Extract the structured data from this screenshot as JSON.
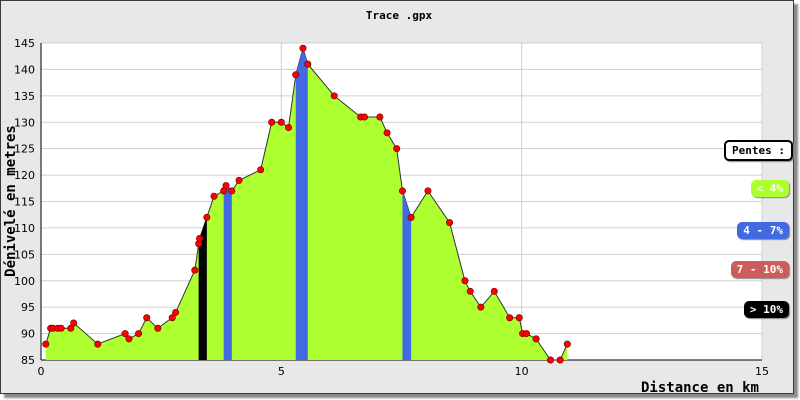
{
  "chart_data": {
    "type": "area",
    "title": "Trace .gpx",
    "xlabel": "Distance en km",
    "ylabel": "Dénivelé en metres",
    "xlim": [
      0,
      15
    ],
    "ylim": [
      85,
      145
    ],
    "x_ticks": [
      0,
      5,
      10,
      15
    ],
    "y_ticks": [
      85,
      90,
      95,
      100,
      105,
      110,
      115,
      120,
      125,
      130,
      135,
      140,
      145
    ],
    "grid": true,
    "legend_position": "right",
    "legend_title": "Pentes :",
    "legend": [
      {
        "label": "< 4%",
        "color": "#adff2f",
        "text_color": "#ffffff"
      },
      {
        "label": "4 - 7%",
        "color": "#4169e1",
        "text_color": "#ffffff"
      },
      {
        "label": "7 - 10%",
        "color": "#cd5c5c",
        "text_color": "#ffffff"
      },
      {
        "label": "> 10%",
        "color": "#000000",
        "text_color": "#ffffff"
      }
    ],
    "fill_color": "#adff2f",
    "point_color": "#ff0000",
    "x": [
      0.1,
      0.2,
      0.25,
      0.35,
      0.42,
      0.62,
      0.68,
      1.18,
      1.75,
      1.83,
      2.03,
      2.2,
      2.43,
      2.73,
      2.8,
      3.2,
      3.28,
      3.3,
      3.45,
      3.6,
      3.8,
      3.85,
      3.97,
      4.12,
      4.57,
      4.8,
      5.0,
      5.15,
      5.3,
      5.45,
      5.55,
      6.1,
      6.65,
      6.73,
      7.05,
      7.2,
      7.4,
      7.52,
      7.7,
      8.05,
      8.5,
      8.82,
      8.93,
      9.15,
      9.43,
      9.75,
      9.95,
      10.02,
      10.1,
      10.3,
      10.6,
      10.8,
      10.95
    ],
    "values": [
      88,
      91,
      91,
      91,
      91,
      91,
      92,
      88,
      90,
      89,
      90,
      93,
      91,
      93,
      94,
      102,
      107,
      108,
      112,
      116,
      117,
      118,
      117,
      119,
      121,
      130,
      130,
      129,
      139,
      144,
      141,
      135,
      131,
      131,
      131,
      128,
      125,
      117,
      112,
      117,
      111,
      100,
      98,
      95,
      98,
      93,
      93,
      90,
      90,
      89,
      85,
      85,
      88
    ],
    "slope_bands": [
      {
        "category": "> 10%",
        "x0": 3.28,
        "x1": 3.45
      },
      {
        "category": "4 - 7%",
        "x0": 3.8,
        "x1": 3.97
      },
      {
        "category": "4 - 7%",
        "x0": 5.3,
        "x1": 5.55
      },
      {
        "category": "4 - 7%",
        "x0": 7.52,
        "x1": 7.7
      }
    ]
  }
}
